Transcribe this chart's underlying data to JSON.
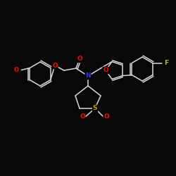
{
  "bg_color": "#080808",
  "bond_color": "#d8d8d8",
  "atom_colors": {
    "O": "#ee1100",
    "N": "#3333ee",
    "S": "#cc9900",
    "F": "#99cc44"
  },
  "font_size_atom": 6.5,
  "font_size_small": 6.0,
  "lw": 1.1
}
